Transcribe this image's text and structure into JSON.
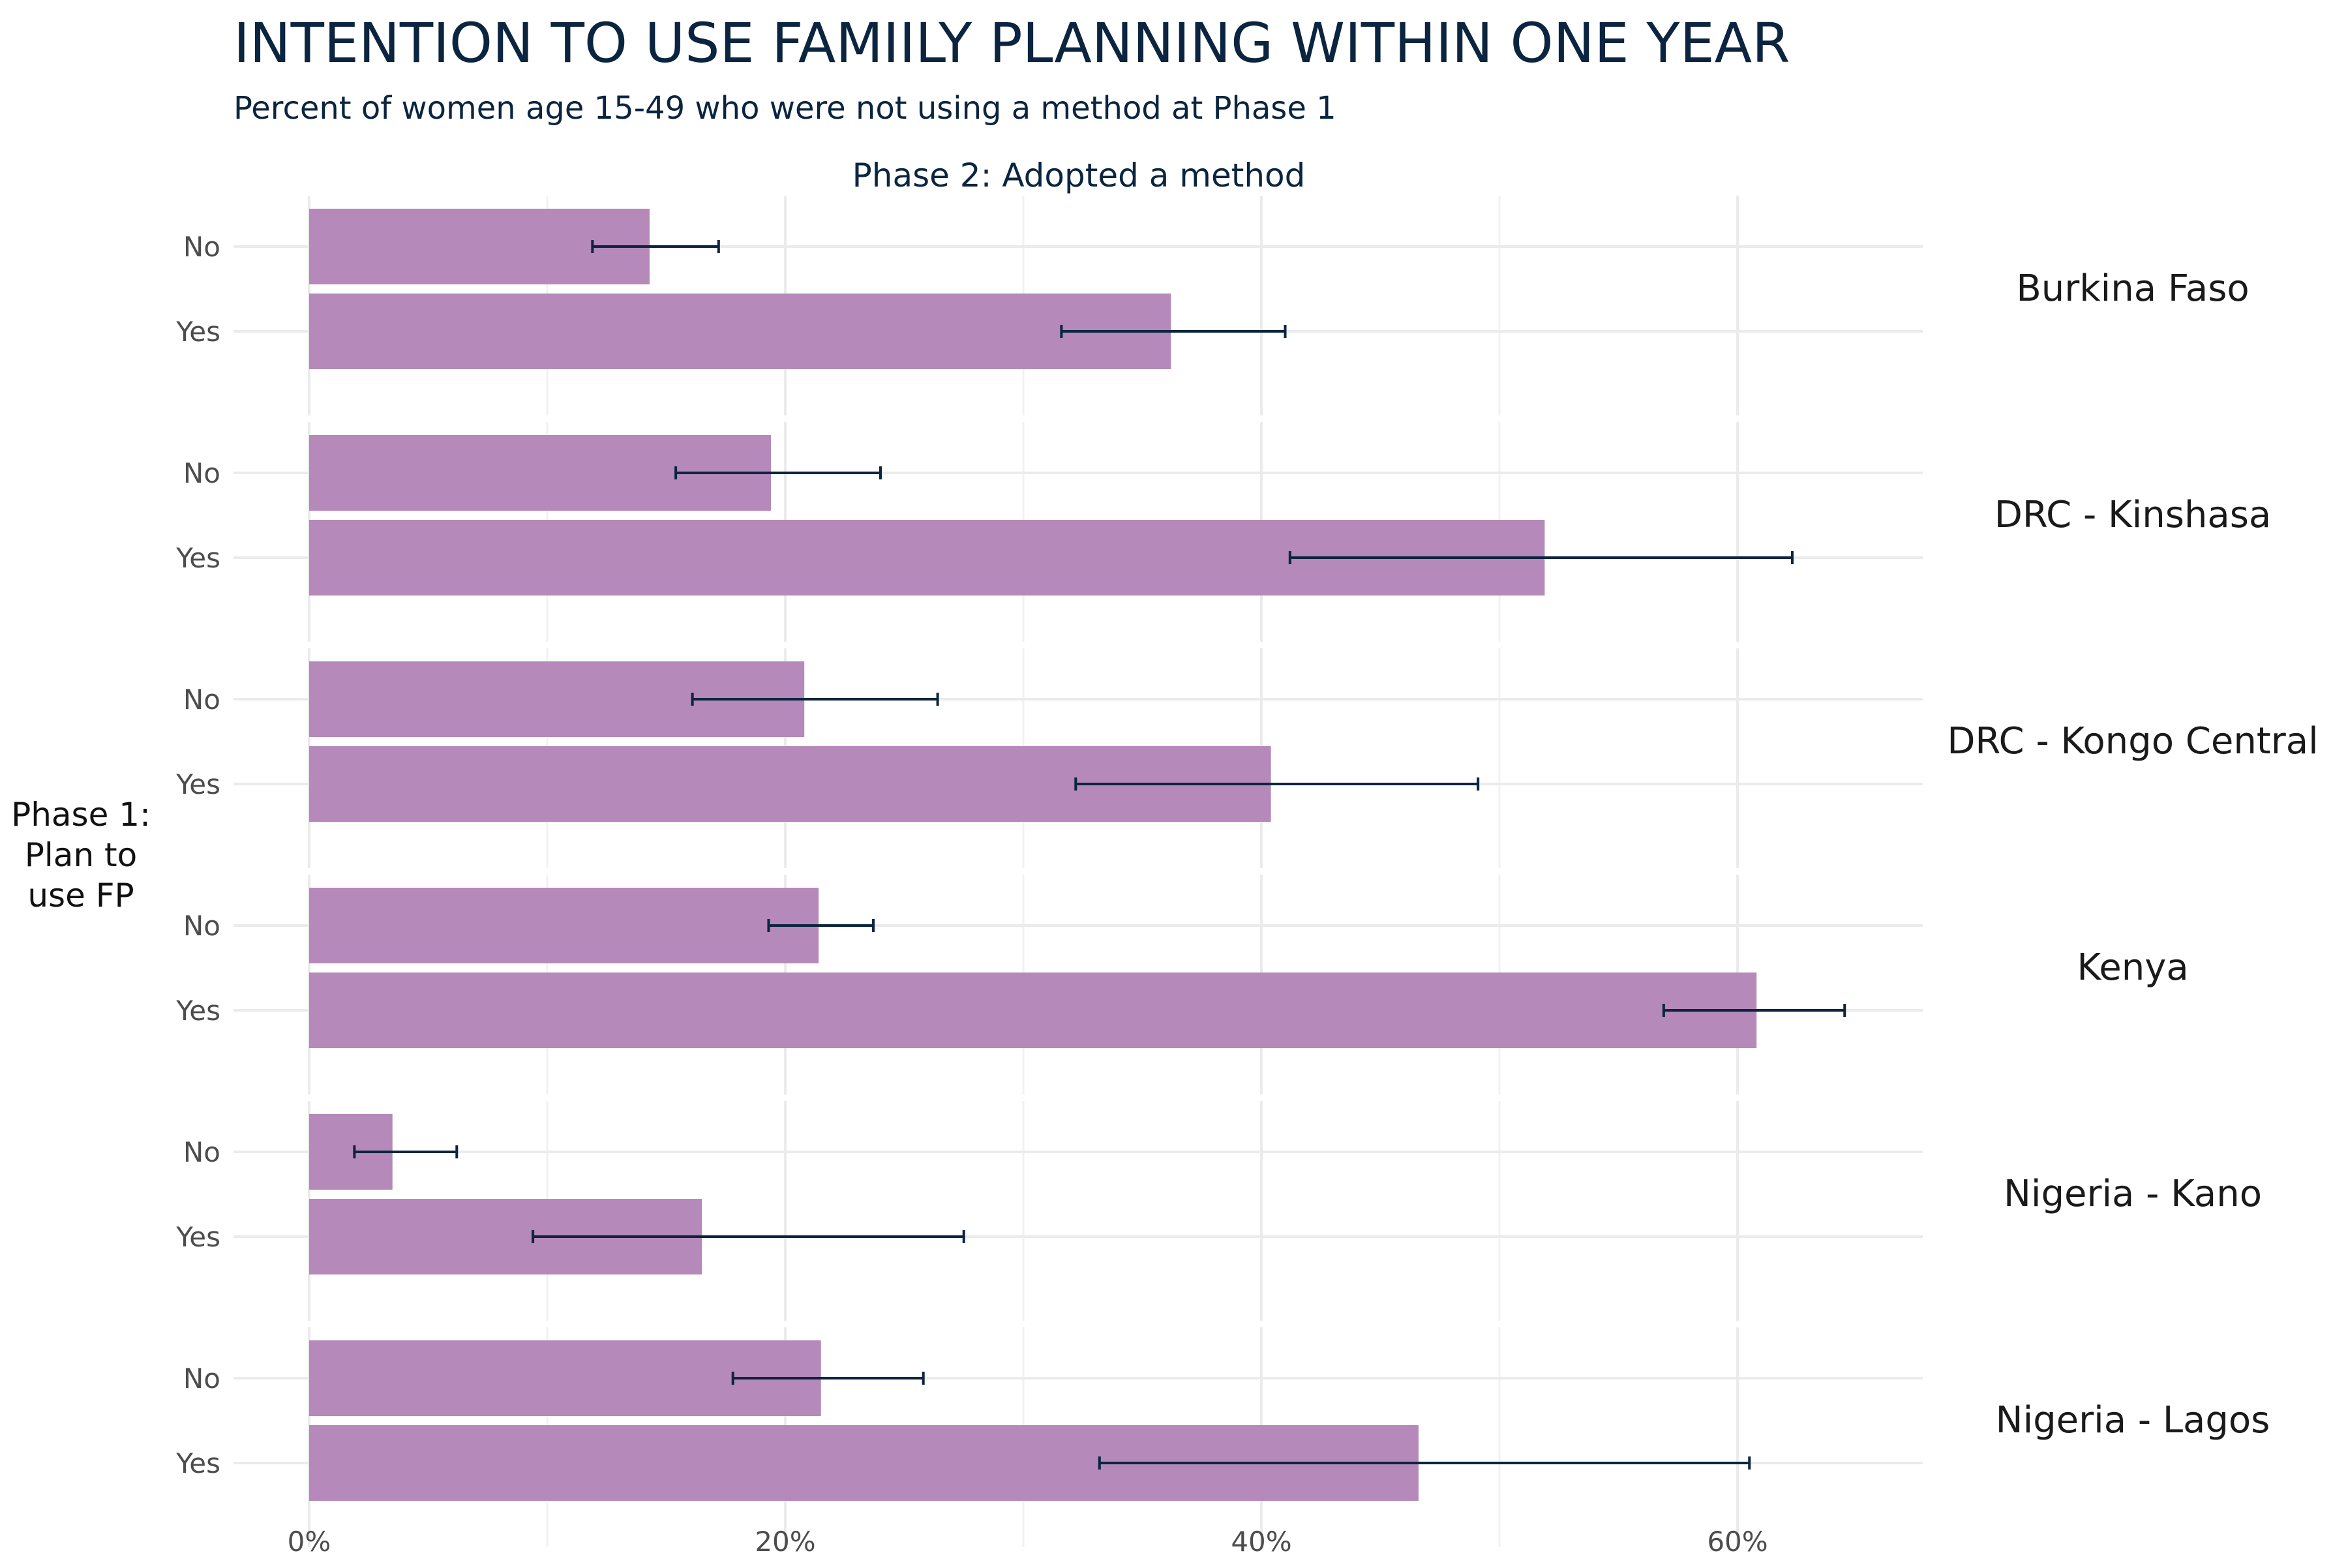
{
  "chart_data": {
    "type": "bar",
    "orientation": "horizontal",
    "title": "INTENTION TO USE FAMIILY PLANNING WITHIN ONE YEAR",
    "subtitle": "Percent of women age 15-49 who were not using a method at Phase 1",
    "column_strip": "Phase 2: Adopted a method",
    "ylabel_lines": [
      "Phase 1:",
      "Plan to",
      "use FP"
    ],
    "categories": [
      "No",
      "Yes"
    ],
    "xlim": [
      0,
      0.68
    ],
    "x_ticks": [
      0,
      0.2,
      0.4,
      0.6
    ],
    "x_tick_labels": [
      "0%",
      "20%",
      "40%",
      "60%"
    ],
    "grid": true,
    "bar_color": "#b589b9",
    "error_color": "#0b2540",
    "panels": [
      {
        "name": "Burkina Faso",
        "bars": [
          {
            "category": "No",
            "value": 0.143,
            "lower": 0.119,
            "upper": 0.172
          },
          {
            "category": "Yes",
            "value": 0.362,
            "lower": 0.316,
            "upper": 0.41
          }
        ]
      },
      {
        "name": "DRC - Kinshasa",
        "bars": [
          {
            "category": "No",
            "value": 0.194,
            "lower": 0.154,
            "upper": 0.24
          },
          {
            "category": "Yes",
            "value": 0.519,
            "lower": 0.412,
            "upper": 0.623
          }
        ]
      },
      {
        "name": "DRC - Kongo Central",
        "bars": [
          {
            "category": "No",
            "value": 0.208,
            "lower": 0.161,
            "upper": 0.264
          },
          {
            "category": "Yes",
            "value": 0.404,
            "lower": 0.322,
            "upper": 0.491
          }
        ]
      },
      {
        "name": "Kenya",
        "bars": [
          {
            "category": "No",
            "value": 0.214,
            "lower": 0.193,
            "upper": 0.237
          },
          {
            "category": "Yes",
            "value": 0.608,
            "lower": 0.569,
            "upper": 0.645
          }
        ]
      },
      {
        "name": "Nigeria - Kano",
        "bars": [
          {
            "category": "No",
            "value": 0.035,
            "lower": 0.019,
            "upper": 0.062
          },
          {
            "category": "Yes",
            "value": 0.165,
            "lower": 0.094,
            "upper": 0.275
          }
        ]
      },
      {
        "name": "Nigeria - Lagos",
        "bars": [
          {
            "category": "No",
            "value": 0.215,
            "lower": 0.178,
            "upper": 0.258
          },
          {
            "category": "Yes",
            "value": 0.466,
            "lower": 0.332,
            "upper": 0.605
          }
        ]
      }
    ]
  }
}
